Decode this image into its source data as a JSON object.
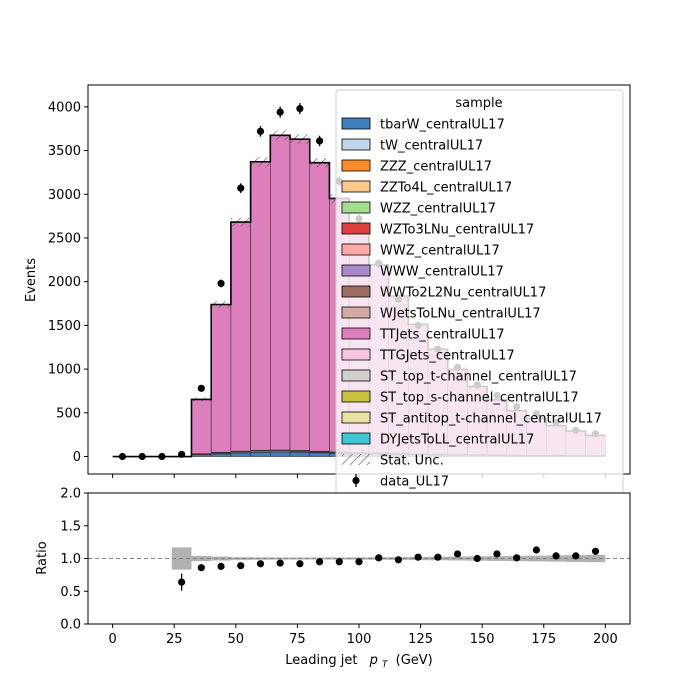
{
  "chart_data": [
    {
      "type": "stacked-histogram",
      "xlim": [
        -10,
        210
      ],
      "ylim": [
        -200,
        4250
      ],
      "ylabel": "Events",
      "x_ticks": [
        0,
        25,
        50,
        75,
        100,
        125,
        150,
        175,
        200
      ],
      "x_tick_labels": [
        "0",
        "25",
        "50",
        "75",
        "100",
        "125",
        "150",
        "175",
        "200"
      ],
      "y_ticks": [
        0,
        500,
        1000,
        1500,
        2000,
        2500,
        3000,
        3500,
        4000
      ],
      "y_tick_labels": [
        "0",
        "500",
        "1000",
        "1500",
        "2000",
        "2500",
        "3000",
        "3500",
        "4000"
      ],
      "bin_edges": [
        0,
        8,
        16,
        24,
        32,
        40,
        48,
        56,
        64,
        72,
        80,
        88,
        96,
        104,
        112,
        120,
        128,
        136,
        144,
        152,
        160,
        168,
        176,
        184,
        192,
        200
      ],
      "series": [
        {
          "name": "tbarW_centralUL17",
          "color": "#3f7fbf",
          "values": [
            0,
            0,
            0,
            0,
            20,
            30,
            40,
            48,
            50,
            48,
            42,
            36,
            32,
            28,
            24,
            20,
            18,
            16,
            14,
            12,
            10,
            9,
            8,
            7,
            6
          ]
        },
        {
          "name": "tW_centralUL17",
          "color": "#bfd5ec",
          "values": [
            0,
            0,
            0,
            0,
            8,
            12,
            14,
            16,
            16,
            14,
            12,
            10,
            9,
            8,
            7,
            6,
            5,
            5,
            4,
            4,
            3,
            3,
            3,
            2,
            2
          ]
        },
        {
          "name": "ZZZ_centralUL17",
          "color": "#ff8c2a",
          "values": [
            0,
            0,
            0,
            0,
            0,
            0,
            0,
            0,
            0,
            0,
            0,
            0,
            0,
            0,
            0,
            0,
            0,
            0,
            0,
            0,
            0,
            0,
            0,
            0,
            0
          ]
        },
        {
          "name": "ZZTo4L_centralUL17",
          "color": "#ffc98d",
          "values": [
            0,
            0,
            0,
            0,
            0,
            0,
            0,
            0,
            0,
            0,
            0,
            0,
            0,
            0,
            0,
            0,
            0,
            0,
            0,
            0,
            0,
            0,
            0,
            0,
            0
          ]
        },
        {
          "name": "WZZ_centralUL17",
          "color": "#a3de8e",
          "values": [
            0,
            0,
            0,
            0,
            0,
            0,
            0,
            0,
            0,
            0,
            0,
            0,
            0,
            0,
            0,
            0,
            0,
            0,
            0,
            0,
            0,
            0,
            0,
            0,
            0
          ]
        },
        {
          "name": "WZTo3LNu_centralUL17",
          "color": "#e0403f",
          "values": [
            0,
            0,
            0,
            0,
            1,
            1,
            1,
            1,
            1,
            1,
            1,
            1,
            1,
            1,
            1,
            1,
            1,
            1,
            1,
            1,
            1,
            1,
            1,
            1,
            1
          ]
        },
        {
          "name": "WWZ_centralUL17",
          "color": "#ffa9a6",
          "values": [
            0,
            0,
            0,
            0,
            0,
            0,
            0,
            0,
            0,
            0,
            0,
            0,
            0,
            0,
            0,
            0,
            0,
            0,
            0,
            0,
            0,
            0,
            0,
            0,
            0
          ]
        },
        {
          "name": "WWW_centralUL17",
          "color": "#a98bcb",
          "values": [
            0,
            0,
            0,
            0,
            0,
            0,
            0,
            0,
            0,
            0,
            0,
            0,
            0,
            0,
            0,
            0,
            0,
            0,
            0,
            0,
            0,
            0,
            0,
            0,
            0
          ]
        },
        {
          "name": "WWTo2L2Nu_centralUL17",
          "color": "#9a6b5f",
          "values": [
            0,
            0,
            0,
            0,
            2,
            3,
            3,
            3,
            3,
            3,
            3,
            2,
            2,
            2,
            2,
            2,
            2,
            2,
            1,
            1,
            1,
            1,
            1,
            1,
            1
          ]
        },
        {
          "name": "WJetsToLNu_centralUL17",
          "color": "#d4aba4",
          "values": [
            0,
            0,
            0,
            0,
            2,
            3,
            4,
            4,
            4,
            4,
            3,
            3,
            3,
            3,
            2,
            2,
            2,
            2,
            2,
            1,
            1,
            1,
            1,
            1,
            1
          ]
        },
        {
          "name": "TTJets_centralUL17",
          "color": "#dd7fbd",
          "values": [
            0,
            0,
            0,
            0,
            620,
            1690,
            2620,
            3300,
            3600,
            3560,
            3300,
            2900,
            2550,
            2150,
            1800,
            1480,
            1200,
            970,
            780,
            630,
            510,
            420,
            340,
            280,
            230
          ]
        },
        {
          "name": "TTGJets_centralUL17",
          "color": "#f7c5df",
          "values": [
            0,
            0,
            0,
            0,
            0,
            0,
            0,
            0,
            0,
            0,
            0,
            0,
            0,
            0,
            0,
            0,
            0,
            0,
            0,
            0,
            0,
            0,
            0,
            0,
            0
          ]
        },
        {
          "name": "ST_top_t-channel_centralUL17",
          "color": "#cfcfcf",
          "values": [
            0,
            0,
            0,
            0,
            0,
            0,
            0,
            0,
            0,
            0,
            0,
            0,
            0,
            0,
            0,
            0,
            0,
            0,
            0,
            0,
            0,
            0,
            0,
            0,
            0
          ]
        },
        {
          "name": "ST_top_s-channel_centralUL17",
          "color": "#c7c23c",
          "values": [
            0,
            0,
            0,
            0,
            0,
            0,
            0,
            0,
            0,
            0,
            0,
            0,
            0,
            0,
            0,
            0,
            0,
            0,
            0,
            0,
            0,
            0,
            0,
            0,
            0
          ]
        },
        {
          "name": "ST_antitop_t-channel_centralUL17",
          "color": "#e8e2a6",
          "values": [
            0,
            0,
            0,
            0,
            0,
            0,
            0,
            0,
            0,
            0,
            0,
            0,
            0,
            0,
            0,
            0,
            0,
            0,
            0,
            0,
            0,
            0,
            0,
            0,
            0
          ]
        },
        {
          "name": "DYJetsToLL_centralUL17",
          "color": "#3fc4d4",
          "values": [
            0,
            0,
            0,
            0,
            0,
            0,
            0,
            0,
            0,
            0,
            0,
            0,
            0,
            0,
            0,
            0,
            0,
            0,
            0,
            0,
            0,
            0,
            0,
            0,
            0
          ]
        }
      ],
      "stat_unc_label": "Stat. Unc.",
      "data": {
        "name": "data_UL17",
        "x": [
          4,
          12,
          20,
          28,
          36,
          44,
          52,
          60,
          68,
          76,
          84,
          92,
          100,
          108,
          116,
          124,
          132,
          140,
          148,
          156,
          164,
          172,
          180,
          188,
          196
        ],
        "y": [
          0,
          0,
          0,
          25,
          780,
          1980,
          3070,
          3720,
          3940,
          3980,
          3610,
          3150,
          2720,
          2210,
          1800,
          1500,
          1230,
          1020,
          820,
          700,
          570,
          490,
          390,
          300,
          260
        ]
      },
      "legend": {
        "title": "sample",
        "location": "upper-right"
      }
    },
    {
      "type": "scatter",
      "xlim": [
        -10,
        210
      ],
      "ylim": [
        0,
        2
      ],
      "xlabel_main": "Leading jet",
      "xlabel_sym": "p",
      "xlabel_sub": "T",
      "xlabel_unit": "(GeV)",
      "ylabel": "Ratio",
      "x_ticks": [
        0,
        25,
        50,
        75,
        100,
        125,
        150,
        175,
        200
      ],
      "x_tick_labels": [
        "0",
        "25",
        "50",
        "75",
        "100",
        "125",
        "150",
        "175",
        "200"
      ],
      "y_ticks": [
        0,
        0.5,
        1,
        1.5,
        2
      ],
      "y_tick_labels": [
        "0.0",
        "0.5",
        "1.0",
        "1.5",
        "2.0"
      ],
      "reference_line": 1.0,
      "unc_band": {
        "bin_edges": [
          24,
          32,
          40,
          48,
          56,
          64,
          72,
          80,
          88,
          96,
          104,
          112,
          120,
          128,
          136,
          144,
          152,
          160,
          168,
          176,
          184,
          192,
          200
        ],
        "halfwidth": [
          0.17,
          0.04,
          0.03,
          0.02,
          0.018,
          0.016,
          0.015,
          0.015,
          0.016,
          0.017,
          0.019,
          0.021,
          0.024,
          0.027,
          0.03,
          0.033,
          0.037,
          0.04,
          0.044,
          0.048,
          0.052,
          0.056
        ]
      },
      "points": {
        "x": [
          28,
          36,
          44,
          52,
          60,
          68,
          76,
          84,
          92,
          100,
          108,
          116,
          124,
          132,
          140,
          148,
          156,
          164,
          172,
          180,
          188,
          196
        ],
        "y": [
          0.64,
          0.86,
          0.88,
          0.89,
          0.92,
          0.93,
          0.92,
          0.95,
          0.95,
          0.95,
          1.01,
          0.98,
          1.02,
          1.02,
          1.07,
          1.0,
          1.07,
          1.01,
          1.13,
          1.04,
          1.04,
          1.11
        ],
        "err": [
          0.13,
          0.02,
          0.015,
          0.012,
          0.01,
          0.01,
          0.01,
          0.01,
          0.012,
          0.013,
          0.015,
          0.017,
          0.019,
          0.022,
          0.025,
          0.028,
          0.03,
          0.034,
          0.037,
          0.04,
          0.045,
          0.05
        ]
      }
    }
  ]
}
